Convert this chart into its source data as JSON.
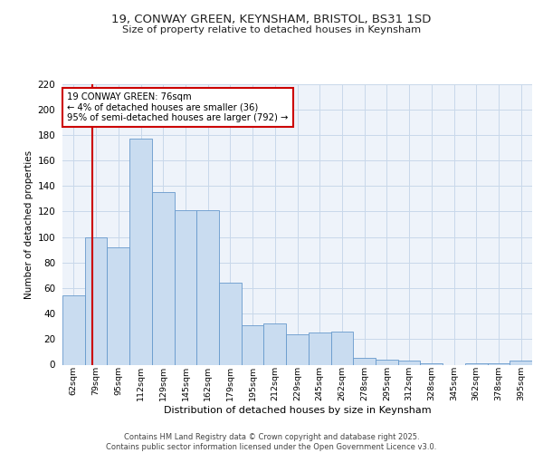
{
  "title_line1": "19, CONWAY GREEN, KEYNSHAM, BRISTOL, BS31 1SD",
  "title_line2": "Size of property relative to detached houses in Keynsham",
  "xlabel": "Distribution of detached houses by size in Keynsham",
  "ylabel": "Number of detached properties",
  "categories": [
    "62sqm",
    "79sqm",
    "95sqm",
    "112sqm",
    "129sqm",
    "145sqm",
    "162sqm",
    "179sqm",
    "195sqm",
    "212sqm",
    "229sqm",
    "245sqm",
    "262sqm",
    "278sqm",
    "295sqm",
    "312sqm",
    "328sqm",
    "345sqm",
    "362sqm",
    "378sqm",
    "395sqm"
  ],
  "values": [
    54,
    100,
    92,
    177,
    135,
    121,
    121,
    64,
    31,
    32,
    24,
    25,
    26,
    5,
    4,
    3,
    1,
    0,
    1,
    1,
    3
  ],
  "bar_color": "#c9dcf0",
  "bar_edge_color": "#6699cc",
  "annotation_text": "19 CONWAY GREEN: 76sqm\n← 4% of detached houses are smaller (36)\n95% of semi-detached houses are larger (792) →",
  "annotation_box_color": "#ffffff",
  "annotation_box_edge": "#cc0000",
  "vline_color": "#cc0000",
  "vline_x": 0.82,
  "grid_color": "#c8d8ea",
  "background_color": "#eef3fa",
  "footer_line1": "Contains HM Land Registry data © Crown copyright and database right 2025.",
  "footer_line2": "Contains public sector information licensed under the Open Government Licence v3.0.",
  "ylim": [
    0,
    220
  ],
  "yticks": [
    0,
    20,
    40,
    60,
    80,
    100,
    120,
    140,
    160,
    180,
    200,
    220
  ]
}
